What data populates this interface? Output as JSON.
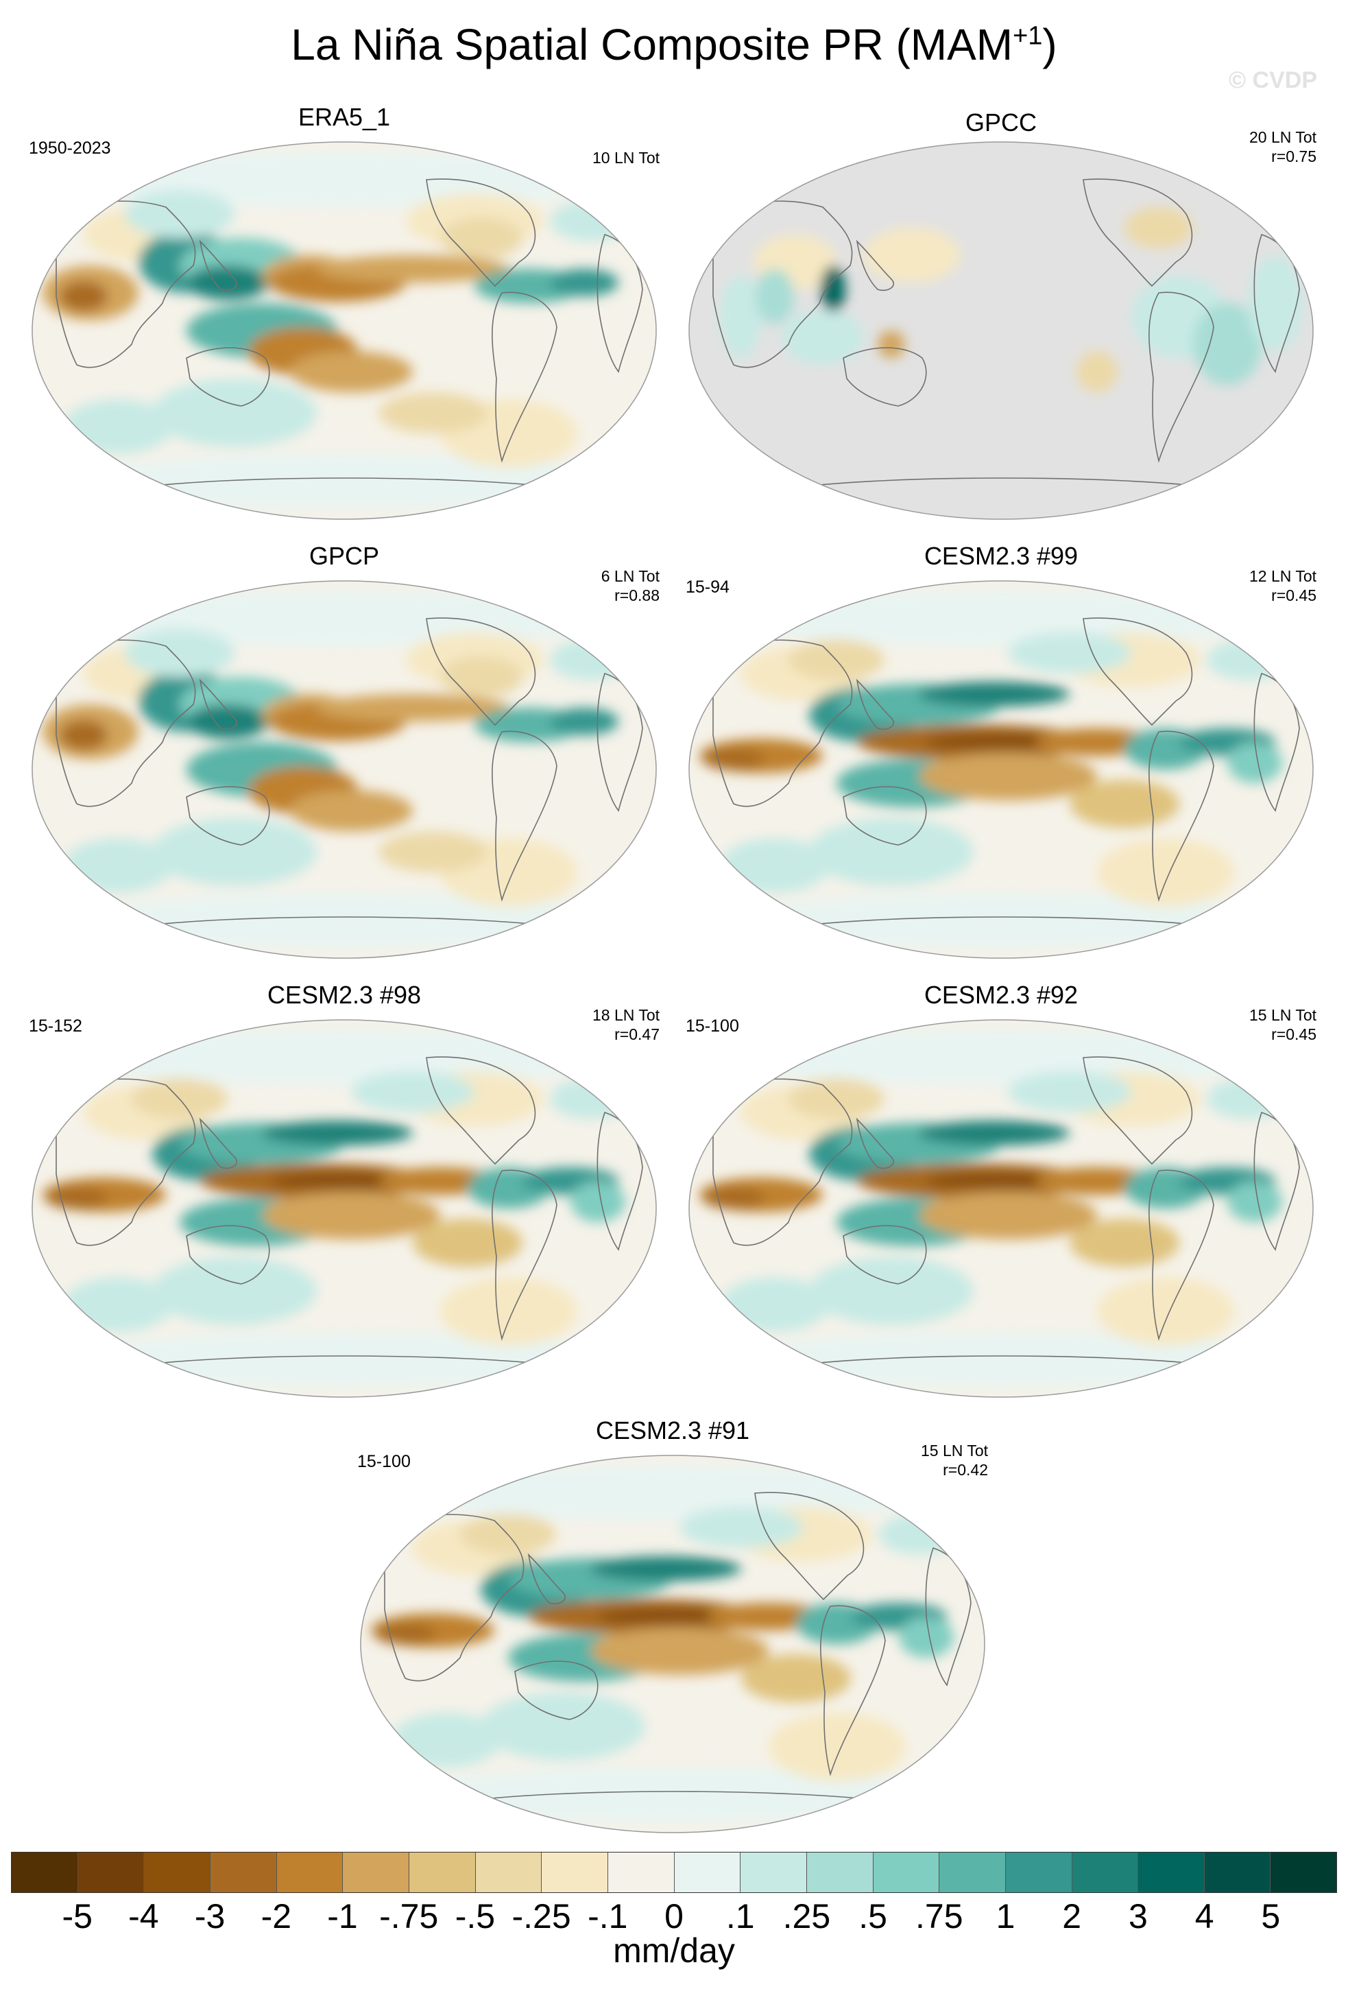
{
  "title_main": "La Niña Spatial Composite PR (MAM",
  "title_sup": "+1",
  "title_end": ")",
  "watermark": "© CVDP",
  "panels": [
    {
      "title": "ERA5_1",
      "left": "1950-2023",
      "right1": "10 LN Tot",
      "right2": "",
      "variant": "obs"
    },
    {
      "title": "GPCC",
      "left": "",
      "right1": "20 LN Tot",
      "right2": "r=0.75",
      "variant": "land"
    },
    {
      "title": "GPCP",
      "left": "",
      "right1": "6 LN Tot",
      "right2": "r=0.88",
      "variant": "obs"
    },
    {
      "title": "CESM2.3 #99",
      "left": "15-94",
      "right1": "12 LN Tot",
      "right2": "r=0.45",
      "variant": "model"
    },
    {
      "title": "CESM2.3 #98",
      "left": "15-152",
      "right1": "18 LN Tot",
      "right2": "r=0.47",
      "variant": "model"
    },
    {
      "title": "CESM2.3 #92",
      "left": "15-100",
      "right1": "15 LN Tot",
      "right2": "r=0.45",
      "variant": "model"
    },
    {
      "title": "CESM2.3 #91",
      "left": "15-100",
      "right1": "15 LN Tot",
      "right2": "r=0.42",
      "variant": "model"
    }
  ],
  "colorbar": {
    "colors": [
      "#543005",
      "#723e0a",
      "#8c510a",
      "#a86a23",
      "#bf812d",
      "#d2a45c",
      "#dfc27d",
      "#ecd9a8",
      "#f6e8c3",
      "#f5f2e9",
      "#e8f4f2",
      "#c7eae5",
      "#a7ddd5",
      "#80cdc1",
      "#5ab4a7",
      "#35978f",
      "#1d8178",
      "#01665e",
      "#014f46",
      "#003c30"
    ],
    "labels": [
      "-5",
      "-4",
      "-3",
      "-2",
      "-1",
      "-.75",
      "-.5",
      "-.25",
      "-.1",
      "0",
      ".1",
      ".25",
      ".5",
      ".75",
      "1",
      "2",
      "3",
      "4",
      "5"
    ],
    "units": "mm/day"
  }
}
